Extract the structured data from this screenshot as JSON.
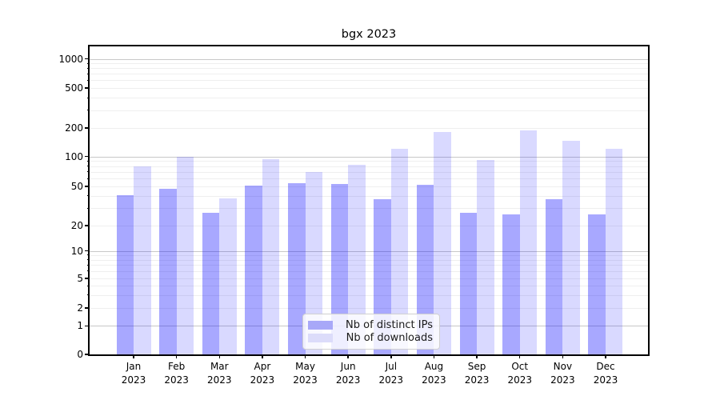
{
  "title": "bgx 2023",
  "chart_data": {
    "type": "bar",
    "title": "bgx 2023",
    "categories": [
      "Jan",
      "Feb",
      "Mar",
      "Apr",
      "May",
      "Jun",
      "Jul",
      "Aug",
      "Sep",
      "Oct",
      "Nov",
      "Dec"
    ],
    "x_tick_year": "2023",
    "series": [
      {
        "name": "Nb of distinct IPs",
        "color": "rgba(0,0,255,0.34)",
        "color_on_white": "#a8a8f8",
        "values": [
          41,
          47,
          27,
          51,
          54,
          53,
          37,
          52,
          27,
          26,
          37,
          26
        ]
      },
      {
        "name": "Nb of downloads",
        "color": "rgba(0,0,255,0.15)",
        "color_on_white": "#dcdcfa",
        "values": [
          80,
          100,
          38,
          94,
          70,
          83,
          120,
          180,
          92,
          190,
          148,
          120
        ]
      }
    ],
    "yscale": "symlog",
    "yticks": [
      0,
      1,
      2,
      5,
      10,
      20,
      50,
      100,
      200,
      500,
      1000
    ],
    "ylim": [
      0,
      1270
    ],
    "xlabel": "",
    "ylabel": "",
    "grid": true,
    "legend_position": "lower center"
  },
  "colors": {
    "major_gridline": "#c8c8c8",
    "minor_gridline": "#efefef",
    "axis_spine": "#000000",
    "legend_border": "#d0d0d0",
    "background": "#ffffff"
  }
}
